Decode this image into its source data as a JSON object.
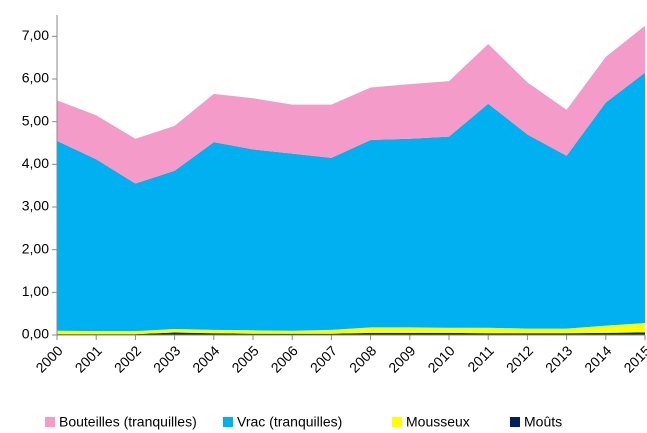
{
  "chart_data": {
    "type": "stacked_area",
    "categories": [
      "2000",
      "2001",
      "2002",
      "2003",
      "2004",
      "2005",
      "2006",
      "2007",
      "2008",
      "2009",
      "2010",
      "2011",
      "2012",
      "2013",
      "2014",
      "2015"
    ],
    "series": [
      {
        "name": "Bouteilles (tranquilles)",
        "color": "#f59bc9",
        "values": [
          0.95,
          1.03,
          1.05,
          1.05,
          1.13,
          1.2,
          1.15,
          1.25,
          1.23,
          1.28,
          1.3,
          1.4,
          1.22,
          1.08,
          1.07,
          1.1
        ]
      },
      {
        "name": "Vrac (tranquilles)",
        "color": "#00b0f0",
        "values": [
          4.45,
          4.03,
          3.46,
          3.71,
          4.4,
          4.24,
          4.15,
          4.03,
          4.39,
          4.42,
          4.48,
          5.25,
          4.55,
          4.05,
          5.23,
          5.87
        ]
      },
      {
        "name": "Mousseux",
        "color": "#ffff00",
        "values": [
          0.08,
          0.07,
          0.07,
          0.08,
          0.08,
          0.08,
          0.07,
          0.09,
          0.13,
          0.13,
          0.12,
          0.13,
          0.11,
          0.11,
          0.17,
          0.22
        ]
      },
      {
        "name": "Moûts",
        "color": "#002060",
        "values": [
          0.02,
          0.02,
          0.02,
          0.06,
          0.04,
          0.03,
          0.03,
          0.03,
          0.05,
          0.05,
          0.05,
          0.04,
          0.04,
          0.04,
          0.05,
          0.06
        ]
      }
    ],
    "stack_order": "bottom-up-reverse",
    "ylim": [
      0,
      7.5
    ],
    "yticks": [
      {
        "value": 0,
        "label": "0,00"
      },
      {
        "value": 1,
        "label": "1,00"
      },
      {
        "value": 2,
        "label": "2,00"
      },
      {
        "value": 3,
        "label": "3,00"
      },
      {
        "value": 4,
        "label": "4,00"
      },
      {
        "value": 5,
        "label": "5,00"
      },
      {
        "value": 6,
        "label": "6,00"
      },
      {
        "value": 7,
        "label": "7,00"
      }
    ],
    "legend": "bottom"
  }
}
